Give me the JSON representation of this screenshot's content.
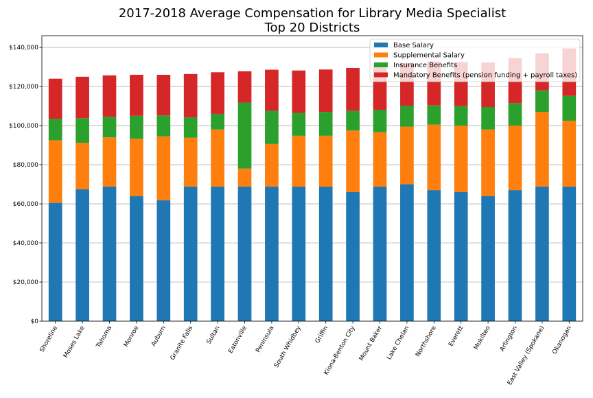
{
  "chart_data": {
    "type": "bar",
    "stacked": true,
    "title": "2017-2018 Average Compensation for Library Media Specialist",
    "subtitle": "Top 20 Districts",
    "xlabel": "",
    "ylabel": "",
    "ylim": [
      0,
      146000
    ],
    "yticks": [
      0,
      20000,
      40000,
      60000,
      80000,
      100000,
      120000,
      140000
    ],
    "ytick_labels": [
      "$0",
      "$20,000",
      "$40,000",
      "$60,000",
      "$80,000",
      "$100,000",
      "$120,000",
      "$140,000"
    ],
    "grid": "horizontal",
    "legend_position": "top-right",
    "categories": [
      "Shoreline",
      "Moses Lake",
      "Tahoma",
      "Monroe",
      "Auburn",
      "Granite Falls",
      "Sultan",
      "Eatonville",
      "Peninsula",
      "South Whidbey",
      "Griffin",
      "Kiona-Benton City",
      "Mount Baker",
      "Lake Chelan",
      "Northshore",
      "Everett",
      "Mukilteo",
      "Arlington",
      "East Valley (Spokane)",
      "Okanogan"
    ],
    "series": [
      {
        "name": "Base Salary",
        "color": "#1f77b4",
        "values": [
          60500,
          67500,
          68800,
          64000,
          61800,
          68800,
          68800,
          68800,
          68800,
          68800,
          68800,
          66000,
          68800,
          70000,
          67000,
          66000,
          64000,
          67000,
          68800,
          68800
        ]
      },
      {
        "name": "Supplemental Salary",
        "color": "#ff7f0e",
        "values": [
          32000,
          23700,
          25200,
          29300,
          32700,
          25000,
          29200,
          9200,
          21800,
          26000,
          26000,
          31500,
          27800,
          29500,
          33500,
          34000,
          34000,
          33000,
          38200,
          33700
        ]
      },
      {
        "name": "Insurance Benefits",
        "color": "#2ca02c",
        "values": [
          11000,
          12600,
          10500,
          11700,
          10700,
          10400,
          8000,
          33800,
          17000,
          11700,
          12200,
          10000,
          11500,
          10700,
          9800,
          10000,
          11500,
          11500,
          11000,
          12700
        ]
      },
      {
        "name": "Mandatory Benefits (pension funding + payroll taxes)",
        "color": "#d62728",
        "values": [
          20500,
          21200,
          21200,
          21000,
          20800,
          22200,
          21300,
          16000,
          21000,
          21700,
          21700,
          22000,
          22700,
          21800,
          22500,
          22500,
          22800,
          23000,
          19000,
          24300
        ]
      }
    ]
  }
}
